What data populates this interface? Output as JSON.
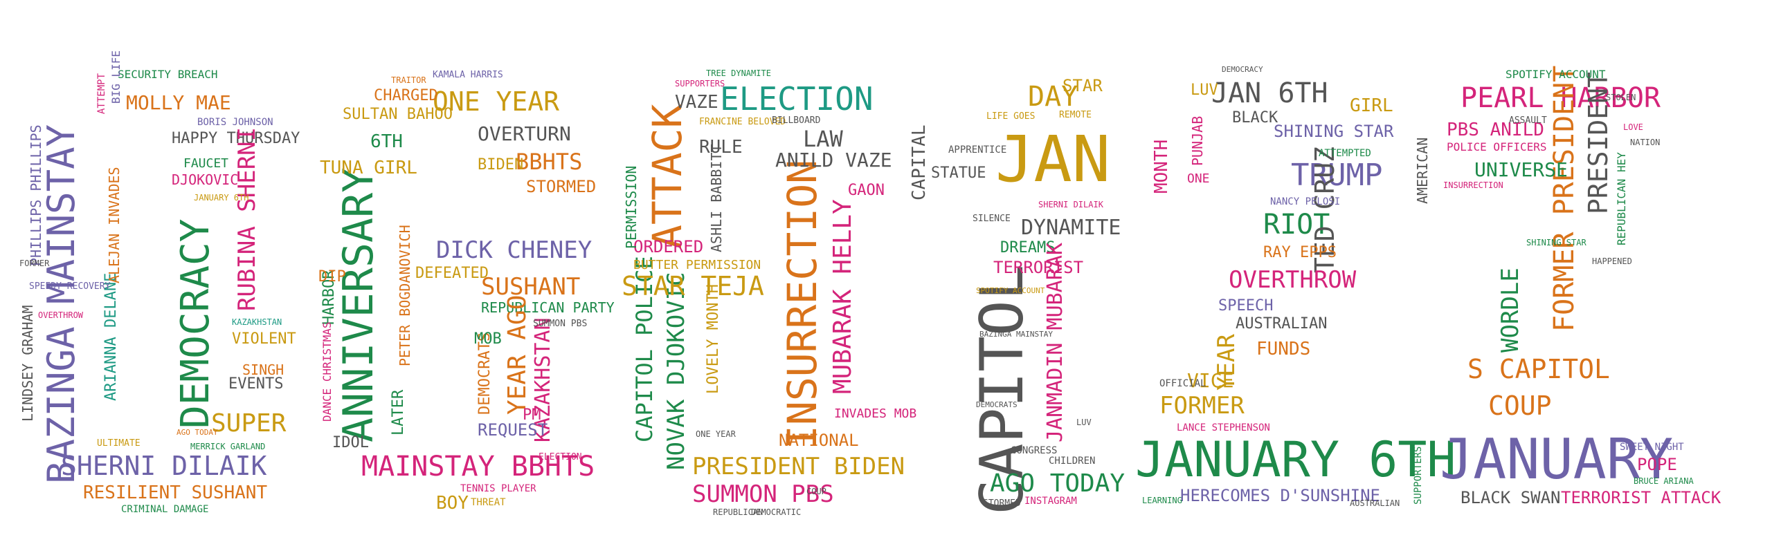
{
  "colors": {
    "purple": "#6d62a8",
    "green": "#1e8a4a",
    "orange": "#d9731a",
    "magenta": "#d4247a",
    "gold": "#c99a12",
    "teal": "#1e9a84",
    "gray": "#555555",
    "olive": "#8a8a1a"
  },
  "digit0": {
    "bazinga": "BAZINGA MAINSTAY",
    "democracy": "DEMOCRACY",
    "shernidilaik": "SHERNI DILAIK",
    "resilient": "RESILIENT SUSHANT",
    "mollymae": "MOLLY MAE",
    "happythursday": "HAPPY THURSDAY",
    "rubina": "RUBINA SHERNI",
    "djokovic": "DJOKOVIC",
    "faucet": "FAUCET",
    "super": "SUPER",
    "violent": "VIOLENT",
    "singh": "SINGH",
    "events": "EVENTS",
    "arianna": "ARIANNA DELANE",
    "alejan": "ALEJAN INVADES",
    "phillips": "PHILLIPS PHILLIPS",
    "lindsey": "LINDSEY GRAHAM",
    "security": "SECURITY BREACH",
    "borisjohnson": "BORIS JOHNSON",
    "criminal": "CRIMINAL DAMAGE",
    "kazakhstan": "KAZAKHSTAN",
    "january6th": "JANUARY 6TH",
    "speedy": "SPEEDY RECOVERY",
    "overthrow": "OVERTHROW",
    "former": "FORMER",
    "attempt": "ATTEMPT",
    "biglife": "BIG LIFE",
    "ultimate": "ULTIMATE",
    "merrick": "MERRICK GARLAND",
    "agotoday": "AGO TODAY"
  },
  "digit2": {
    "anniversary": "ANNIVERSARY",
    "mainstaybbhts": "MAINSTAY BBHTS",
    "oneyear": "ONE YEAR",
    "sultanbahoo": "SULTAN BAHOO",
    "charged": "CHARGED",
    "tunagirl": "TUNA GIRL",
    "sixth": "6TH",
    "overturn": "OVERTURN",
    "bbhts": "BBHTS",
    "biden": "BIDEN",
    "stormed": "STORMED",
    "dickcheney": "DICK CHENEY",
    "sushant": "SUSHANT",
    "defeated": "DEFEATED",
    "republicanparty": "REPUBLICAN PARTY",
    "peter": "PETER BOGDANOVICH",
    "yearago": "YEAR AGO",
    "kazakhstan": "KAZAKHSTAN",
    "democrats": "DEMOCRATS",
    "request": "REQUEST",
    "mob": "MOB",
    "later": "LATER",
    "harbor": "HARBOR",
    "dip": "DIP",
    "idol": "IDOL",
    "boy": "BOY",
    "tennis": "TENNIS PLAYER",
    "threat": "THREAT",
    "dance": "DANCE CHRISTMAS",
    "kamala": "KAMALA HARRIS",
    "traitor": "TRAITOR",
    "summon": "SUMMON PBS",
    "election": "ELECTION",
    "pm": "PM"
  },
  "digit1": {
    "insurrection": "INSURRECTION",
    "attack": "ATTACK",
    "election": "ELECTION",
    "mubarak": "MUBARAK HELLY",
    "novak": "NOVAK DJOKOVIC",
    "capitolpolice": "CAPITOL POLICE",
    "startjea": "STAR TEJA",
    "presidentbiden": "PRESIDENT BIDEN",
    "summonpbs": "SUMMON PBS",
    "anildvaze": "ANILD VAZE",
    "law": "LAW",
    "rule": "RULE",
    "vaze": "VAZE",
    "ordered": "ORDERED",
    "butter": "BUTTER PERMISSION",
    "lovelymonth": "LOVELY MONTH",
    "ashli": "ASHLI BABBITT",
    "national": "NATIONAL",
    "permission": "PERMISSION",
    "gaon": "GAON",
    "tree": "TREE DYNAMITE",
    "francine": "FRANCINE BELOVED",
    "billboard": "BILLBOARD",
    "invades": "INVADES MOB",
    "oneyear": "ONE YEAR",
    "republican": "REPUBLICAN",
    "democratic": "DEMOCRATIC",
    "supporters": "SUPPORTERS",
    "coup": "COUP"
  },
  "digit1b": {
    "capitol": "CAPITOL",
    "jan": "JAN",
    "day": "DAY",
    "star": "STAR",
    "dynamite": "DYNAMITE",
    "terrorist": "TERRORIST",
    "dreams": "DREAMS",
    "agotoday": "AGO TODAY",
    "janmadin": "JANMADIN MUBARAK",
    "capital": "CAPITAL",
    "statue": "STATUE",
    "apprentice": "APPRENTICE",
    "silence": "SILENCE",
    "instagram": "INSTAGRAM",
    "congress": "CONGRESS",
    "stormed": "STORMED",
    "lifegoes": "LIFE GOES",
    "remote": "REMOTE",
    "shernidilaik": "SHERNI DILAIK",
    "children": "CHILDREN",
    "spotify": "SPOTIFY ACCOUNT",
    "bazinga": "BAZINGA MAINSTAY",
    "democrats": "DEMOCRATS",
    "luv": "LUV"
  },
  "digit2b": {
    "jan6th": "JAN 6TH",
    "trump": "TRUMP",
    "riot": "RIOT",
    "tedcruz": "TED CRUZ",
    "overthrow": "OVERTHROW",
    "january6th": "JANUARY 6TH",
    "herecomes": "HERECOMES D'SUNSHINE",
    "former": "FORMER",
    "year": "YEAR",
    "vice": "VICE",
    "funds": "FUNDS",
    "australian": "AUSTRALIAN",
    "speech": "SPEECH",
    "shiningstar": "SHINING STAR",
    "girl": "GIRL",
    "month": "MONTH",
    "punjab": "PUNJAB",
    "black": "BLACK",
    "luv": "LUV",
    "rayepps": "RAY EPPS",
    "nancy": "NANCY PELOSI",
    "official": "OFFICIAL",
    "lance": "LANCE STEPHENSON",
    "attempted": "ATTEMPTED",
    "democracy": "DEMOCRACY",
    "learning": "LEARNING",
    "australian2": "AUSTRALIAN",
    "one": "ONE"
  },
  "digit2c": {
    "january": "JANUARY",
    "pearlharbor": "PEARL HARBOR",
    "formerpresident": "FORMER PRESIDENT",
    "president": "PRESIDENT",
    "scapitol": "S CAPITOL",
    "coup": "COUP",
    "wordle": "WORDLE",
    "universe": "UNIVERSE",
    "pbsanild": "PBS ANILD",
    "police": "POLICE OFFICERS",
    "american": "AMERICAN",
    "blackswan": "BLACK SWAN",
    "terroristattack": "TERRORIST ATTACK",
    "pope": "POPE",
    "spotify": "SPOTIFY ACCOUNT",
    "republicanhey": "REPUBLICAN HEY",
    "sweetnight": "SWEET NIGHT",
    "supporters": "SUPPORTERS",
    "insurrection": "INSURRECTION",
    "assault": "ASSAULT",
    "stolen": "STOLEN",
    "shiningstar": "SHINING STAR",
    "happened": "HAPPENED",
    "nation": "NATION",
    "love": "LOVE",
    "bruce": "BRUCE ARIANA"
  }
}
